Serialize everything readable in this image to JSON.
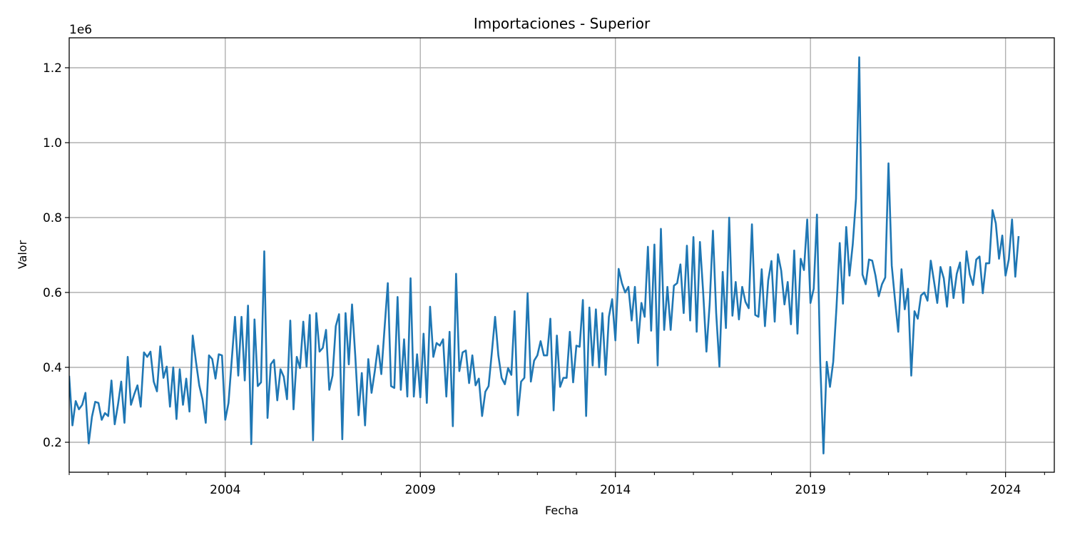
{
  "chart_data": {
    "type": "line",
    "title": "Importaciones - Superior",
    "xlabel": "Fecha",
    "ylabel": "Valor",
    "y_offset_label": "1e6",
    "x_range": [
      "2000-01",
      "2025-04"
    ],
    "ylim": [
      120000,
      1280000
    ],
    "x_ticks": [
      "2004",
      "2009",
      "2014",
      "2019",
      "2024"
    ],
    "y_ticks": [
      0.2,
      0.4,
      0.6,
      0.8,
      1.0,
      1.2
    ],
    "y_tick_labels": [
      "0.2",
      "0.4",
      "0.6",
      "0.8",
      "1.0",
      "1.2"
    ],
    "grid": true,
    "line_color": "#1f77b4",
    "series": [
      {
        "start": "2000-01",
        "frequency": "monthly",
        "values": [
          375000,
          245000,
          310000,
          288000,
          300000,
          332000,
          197000,
          268000,
          308000,
          305000,
          260000,
          278000,
          270000,
          365000,
          248000,
          300000,
          362000,
          252000,
          428000,
          300000,
          328000,
          352000,
          295000,
          440000,
          428000,
          442000,
          362000,
          336000,
          456000,
          372000,
          402000,
          295000,
          400000,
          262000,
          395000,
          300000,
          370000,
          282000,
          485000,
          415000,
          352000,
          315000,
          252000,
          432000,
          422000,
          370000,
          435000,
          432000,
          260000,
          305000,
          420000,
          535000,
          378000,
          535000,
          365000,
          565000,
          195000,
          528000,
          350000,
          360000,
          710000,
          265000,
          408000,
          420000,
          312000,
          395000,
          375000,
          315000,
          525000,
          288000,
          428000,
          398000,
          522000,
          402000,
          540000,
          205000,
          545000,
          442000,
          452000,
          500000,
          340000,
          378000,
          510000,
          542000,
          208000,
          545000,
          408000,
          568000,
          430000,
          272000,
          385000,
          245000,
          422000,
          332000,
          390000,
          458000,
          382000,
          505000,
          625000,
          350000,
          345000,
          588000,
          340000,
          475000,
          322000,
          638000,
          322000,
          435000,
          320000,
          490000,
          305000,
          562000,
          428000,
          465000,
          458000,
          475000,
          322000,
          495000,
          243000,
          650000,
          390000,
          440000,
          445000,
          358000,
          432000,
          352000,
          370000,
          270000,
          335000,
          350000,
          440000,
          535000,
          432000,
          372000,
          355000,
          398000,
          380000,
          550000,
          272000,
          362000,
          372000,
          598000,
          362000,
          418000,
          432000,
          470000,
          432000,
          432000,
          530000,
          285000,
          485000,
          348000,
          372000,
          372000,
          495000,
          360000,
          458000,
          455000,
          580000,
          270000,
          560000,
          405000,
          555000,
          400000,
          545000,
          380000,
          535000,
          582000,
          472000,
          663000,
          625000,
          600000,
          615000,
          525000,
          615000,
          465000,
          572000,
          535000,
          722000,
          498000,
          728000,
          405000,
          770000,
          500000,
          615000,
          500000,
          618000,
          625000,
          675000,
          545000,
          725000,
          525000,
          748000,
          495000,
          735000,
          600000,
          442000,
          570000,
          765000,
          545000,
          402000,
          655000,
          505000,
          800000,
          538000,
          628000,
          528000,
          615000,
          575000,
          558000,
          782000,
          540000,
          535000,
          662000,
          510000,
          632000,
          684000,
          522000,
          702000,
          658000,
          568000,
          628000,
          515000,
          712000,
          490000,
          690000,
          660000,
          795000,
          572000,
          610000,
          808000,
          415000,
          170000,
          415000,
          348000,
          415000,
          560000,
          732000,
          570000,
          775000,
          645000,
          728000,
          850000,
          1228000,
          648000,
          622000,
          688000,
          685000,
          645000,
          590000,
          622000,
          640000,
          945000,
          672000,
          580000,
          495000,
          662000,
          555000,
          610000,
          378000,
          550000,
          530000,
          592000,
          600000,
          578000,
          685000,
          630000,
          572000,
          668000,
          638000,
          562000,
          668000,
          585000,
          650000,
          680000,
          572000,
          710000,
          648000,
          620000,
          688000,
          696000,
          598000,
          678000,
          678000,
          820000,
          785000,
          690000,
          752000,
          645000,
          688000,
          795000,
          642000,
          748000
        ]
      }
    ]
  }
}
